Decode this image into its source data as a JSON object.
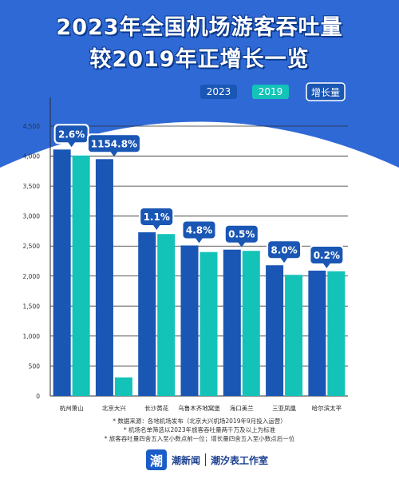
{
  "header": {
    "title_line1": "2023年全国机场游客吞吐量",
    "title_line2": "较2019年正增长一览"
  },
  "chart_data": {
    "type": "bar",
    "categories": [
      "杭州萧山",
      "北京大兴",
      "长沙黄花",
      "乌鲁木齐地窝堡",
      "海口美兰",
      "三亚凤凰",
      "哈尔滨太平"
    ],
    "series": [
      {
        "name": "2023",
        "color": "#1a56b4",
        "values": [
          4110,
          3950,
          2730,
          2510,
          2440,
          2180,
          2090
        ]
      },
      {
        "name": "2019",
        "color": "#13c3b8",
        "values": [
          4010,
          310,
          2700,
          2400,
          2420,
          2020,
          2080
        ]
      }
    ],
    "growth_legend": "增长量",
    "growth_labels": [
      "2.6%",
      "1154.8%",
      "1.1%",
      "4.8%",
      "0.5%",
      "8.0%",
      "0.2%"
    ],
    "yticks": [
      "0",
      "500",
      "1,000",
      "1,500",
      "2,000",
      "2,500",
      "3,000",
      "3,500",
      "4,000",
      "4,500"
    ],
    "ylim": [
      0,
      4500
    ],
    "grid": true,
    "legend_position": "top-right"
  },
  "footer": {
    "notes": [
      "* 数据来源：各地机场发布（北京大兴机场2019年9月投入运营）",
      "* 机场名单筛选以2023年旅客吞吐量两千万及以上为标准",
      "* 旅客吞吐量四舍五入至小数点前一位；增长量四舍五入至小数点后一位"
    ],
    "logo_glyph": "潮",
    "brand": "潮新闻",
    "studio": "潮汐表工作室"
  }
}
